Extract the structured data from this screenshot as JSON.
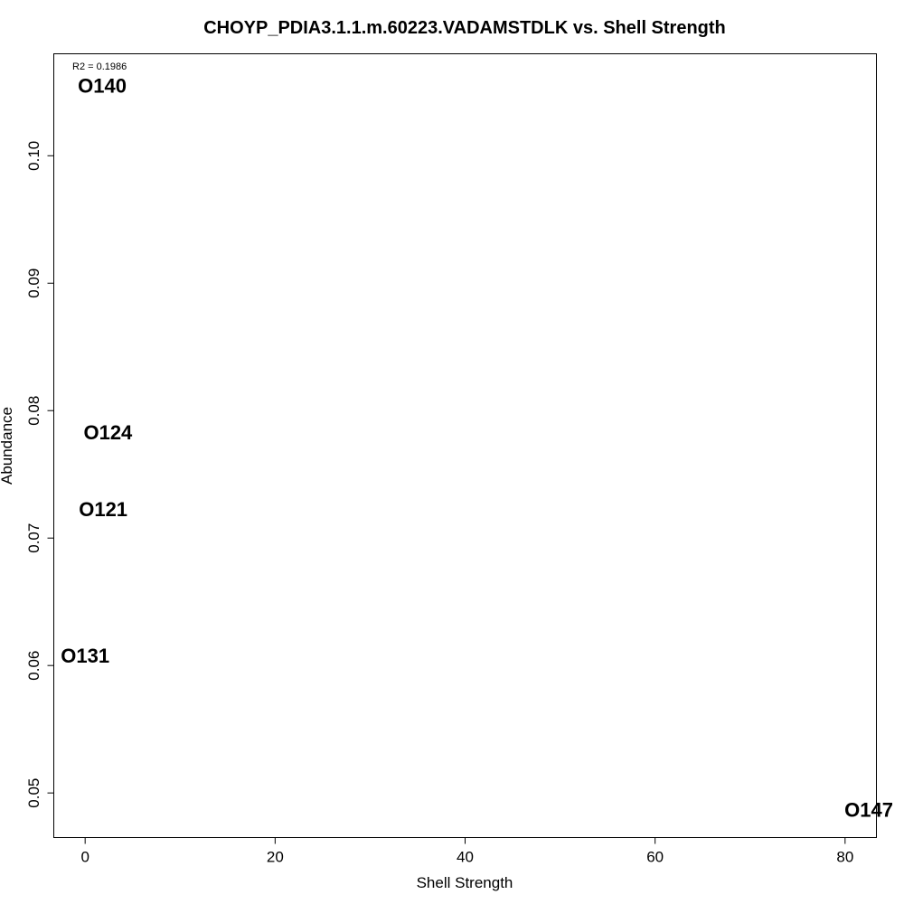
{
  "chart_data": {
    "type": "scatter",
    "title": "CHOYP_PDIA3.1.1.m.60223.VADAMSTDLK vs. Shell Strength",
    "xlabel": "Shell Strength",
    "ylabel": "Abundance",
    "annotation": "R2 = 0.1986",
    "xlim": [
      -3.3,
      83.3
    ],
    "ylim": [
      0.0465,
      0.108
    ],
    "x_ticks": [
      0,
      20,
      40,
      60,
      80
    ],
    "y_ticks": [
      0.05,
      0.06,
      0.07,
      0.08,
      0.09,
      0.1
    ],
    "y_tick_labels": [
      "0.05",
      "0.06",
      "0.07",
      "0.08",
      "0.09",
      "0.10"
    ],
    "grid": false,
    "legend": "none",
    "points": [
      {
        "label": "O140",
        "x": 1.8,
        "y": 0.1055
      },
      {
        "label": "O124",
        "x": 2.4,
        "y": 0.0783
      },
      {
        "label": "O121",
        "x": 1.9,
        "y": 0.0723
      },
      {
        "label": "O131",
        "x": 0.0,
        "y": 0.0608
      },
      {
        "label": "O147",
        "x": 82.5,
        "y": 0.0487
      }
    ]
  }
}
